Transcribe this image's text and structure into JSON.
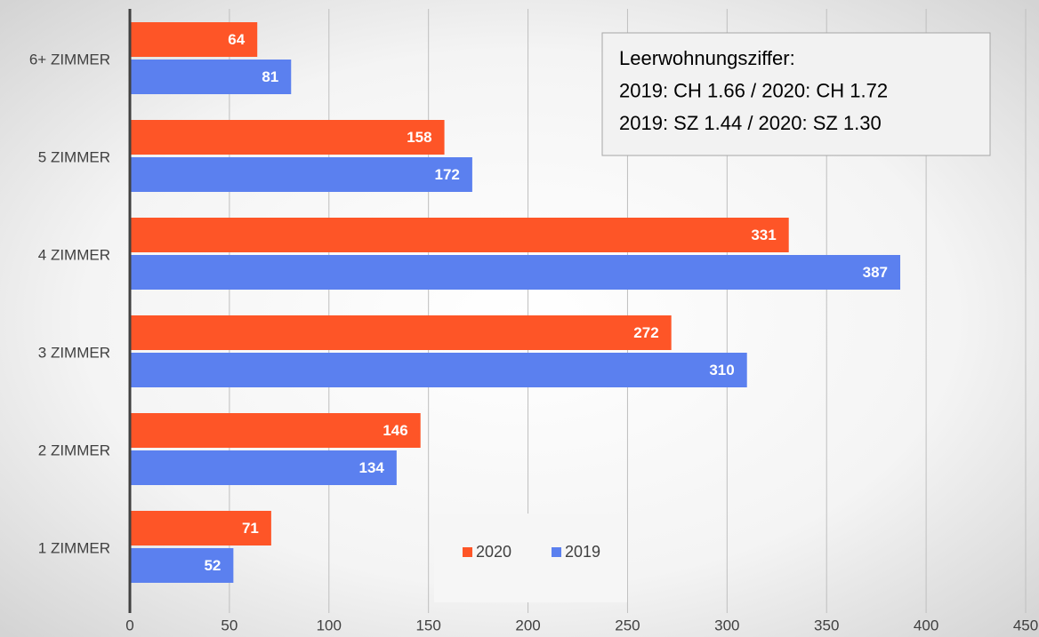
{
  "chart_data": {
    "type": "hbar",
    "categories": [
      "1 ZIMMER",
      "2 ZIMMER",
      "3 ZIMMER",
      "4 ZIMMER",
      "5 ZIMMER",
      "6+ ZIMMER"
    ],
    "series": [
      {
        "name": "2020",
        "color": "#fe5527",
        "values": [
          71,
          146,
          272,
          331,
          158,
          64
        ]
      },
      {
        "name": "2019",
        "color": "#5b80ef",
        "values": [
          52,
          134,
          310,
          387,
          172,
          81
        ]
      }
    ],
    "xlim": [
      0,
      450
    ],
    "xticks": [
      0,
      50,
      100,
      150,
      200,
      250,
      300,
      350,
      400,
      450
    ],
    "grid": true,
    "annotation": [
      "Leerwohnungsziffer:",
      "2019: CH 1.66 / 2020: CH 1.72",
      "2019: SZ 1.44 /  2020: SZ  1.30"
    ]
  }
}
